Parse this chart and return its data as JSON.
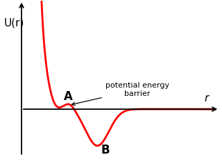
{
  "xlabel": "r",
  "ylabel": "U(r)",
  "curve_color": "#ff0000",
  "background_color": "#ffffff",
  "annotation_text": "potential energy\nbarrier",
  "label_A": "A",
  "label_B": "B",
  "axis_color": "#000000",
  "curve_lw": 2.0,
  "axis_lw": 1.3,
  "figsize": [
    3.2,
    2.36
  ],
  "dpi": 100
}
